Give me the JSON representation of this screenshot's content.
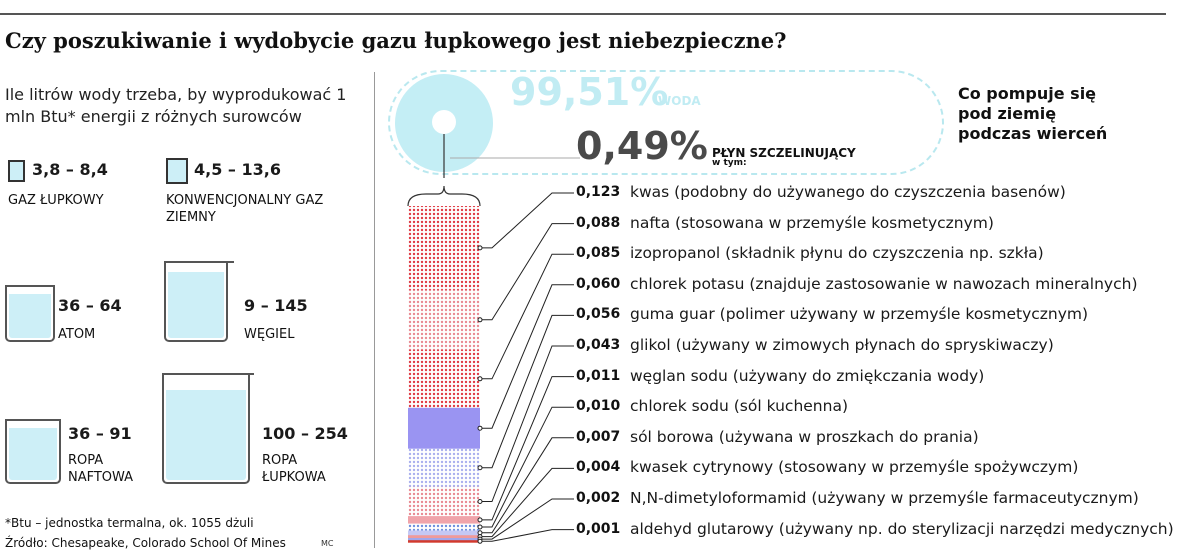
{
  "title": "Czy poszukiwanie i wydobycie gazu łupkowego jest niebezpieczne?",
  "water_panel": {
    "subtitle": "Ile litrów wody trzeba, by wyprodukować 1 mln Btu* energii z różnych surowców",
    "sources": [
      {
        "name": "GAZ ŁUPKOWY",
        "range": "3,8 – 8,4",
        "min": 3.8,
        "max": 8.4
      },
      {
        "name": "KONWENCJONALNY GAZ ZIEMNY",
        "range": "4,5 – 13,6",
        "min": 4.5,
        "max": 13.6
      },
      {
        "name": "ATOM",
        "range": "36 – 64",
        "min": 36,
        "max": 64
      },
      {
        "name": "WĘGIEL",
        "range": "9 – 145",
        "min": 9,
        "max": 145
      },
      {
        "name": "ROPA NAFTOWA",
        "range": "36 – 91",
        "min": 36,
        "max": 91
      },
      {
        "name": "ROPA ŁUPKOWA",
        "range": "100 – 254",
        "min": 100,
        "max": 254
      }
    ],
    "footnote": "*Btu – jednostka termalna, ok. 1055 dżuli",
    "source": "Źródło: Chesapeake, Colorado School Of Mines",
    "credit": "MC"
  },
  "composition": {
    "water_pct": "99,51%",
    "water_label": "WODA",
    "fluid_pct": "0,49%",
    "fluid_label": "PŁYN SZCZELINUJĄCY",
    "fluid_sub": "w tym:",
    "side_title": "Co pompuje się pod ziemię podczas wierceń"
  },
  "chart_data": {
    "type": "stacked-bar",
    "unit": "%",
    "total": 0.49,
    "categories": [
      "kwas (podobny do używanego do czyszczenia basenów)",
      "nafta (stosowana w przemyśle kosmetycznym)",
      "izopropanol (składnik płynu do czyszczenia np. szkła)",
      "chlorek potasu (znajduje zastosowanie w nawozach mineralnych)",
      "guma guar (polimer używany w przemyśle kosmetycznym)",
      "glikol (używany w zimowych płynach do spryskiwaczy)",
      "węglan sodu (używany do zmiękczania wody)",
      "chlorek sodu (sól kuchenna)",
      "sól borowa (używana w proszkach do prania)",
      "kwasek cytrynowy (stosowany w przemyśle spożywczym)",
      "N,N-dimetyloformamid (używany w przemyśle farmaceutycznym)",
      "aldehyd glutarowy (używany np. do sterylizacji narzędzi medycznych)"
    ],
    "labels": [
      "0,123",
      "0,088",
      "0,085",
      "0,060",
      "0,056",
      "0,043",
      "0,011",
      "0,010",
      "0,007",
      "0,004",
      "0,002",
      "0,001"
    ],
    "values": [
      0.123,
      0.088,
      0.085,
      0.06,
      0.056,
      0.043,
      0.011,
      0.01,
      0.007,
      0.004,
      0.002,
      0.001
    ],
    "colors": [
      "#e03b45",
      "#e06670",
      "#e78892",
      "#9a94f2",
      "#b2aef5",
      "#ccd0f6",
      "#f0a4aa",
      "#7b97de",
      "#c4c8f4",
      "#ef9a9a",
      "#9fa7ec",
      "#d23a2e"
    ]
  }
}
